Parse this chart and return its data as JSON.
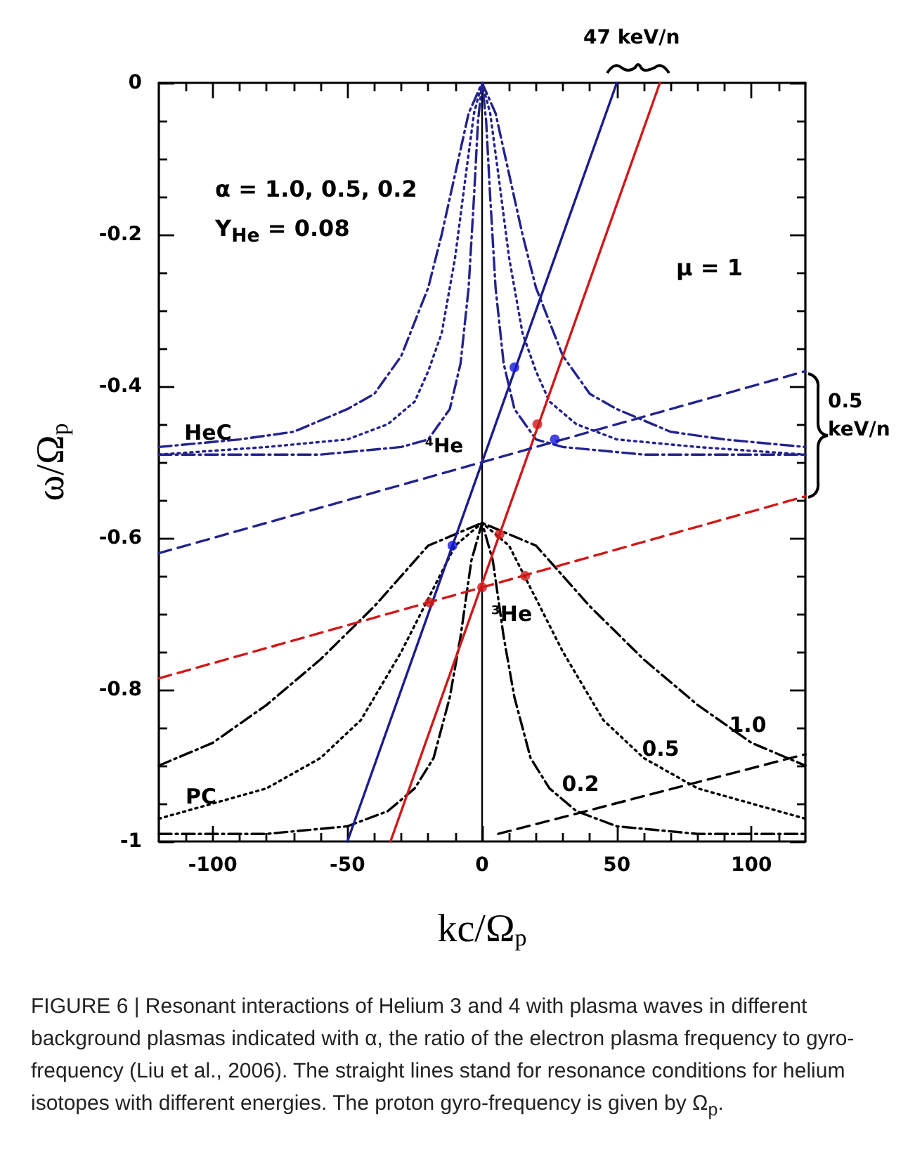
{
  "chart_data": {
    "type": "line",
    "xlabel": "kc/Ω$_{p}$",
    "ylabel": "ω/Ω$_{p}$",
    "xlim": [
      -120,
      120
    ],
    "ylim": [
      -1,
      0
    ],
    "xticks": [
      {
        "value": -110,
        "label": null
      },
      -100,
      {
        "value": -90,
        "label": null
      },
      {
        "value": -80,
        "label": null
      },
      {
        "value": -70,
        "label": null
      },
      {
        "value": -60,
        "label": null
      },
      -50,
      {
        "value": -40,
        "label": null
      },
      {
        "value": -30,
        "label": null
      },
      {
        "value": -20,
        "label": null
      },
      {
        "value": -10,
        "label": null
      },
      0,
      {
        "value": 10,
        "label": null
      },
      {
        "value": 20,
        "label": null
      },
      {
        "value": 30,
        "label": null
      },
      {
        "value": 40,
        "label": null
      },
      50,
      {
        "value": 60,
        "label": null
      },
      {
        "value": 70,
        "label": null
      },
      {
        "value": 80,
        "label": null
      },
      {
        "value": 90,
        "label": null
      },
      100,
      {
        "value": 110,
        "label": null
      }
    ],
    "yticks": [
      -1,
      {
        "value": -0.95,
        "label": null
      },
      {
        "value": -0.9,
        "label": null
      },
      {
        "value": -0.85,
        "label": null
      },
      -0.8,
      {
        "value": -0.75,
        "label": null
      },
      {
        "value": -0.7,
        "label": null
      },
      {
        "value": -0.65,
        "label": null
      },
      -0.6,
      {
        "value": -0.55,
        "label": null
      },
      {
        "value": -0.5,
        "label": null
      },
      {
        "value": -0.45,
        "label": null
      },
      -0.4,
      {
        "value": -0.35,
        "label": null
      },
      {
        "value": -0.3,
        "label": null
      },
      {
        "value": -0.25,
        "label": null
      },
      -0.2,
      {
        "value": -0.15,
        "label": null
      },
      {
        "value": -0.1,
        "label": null
      },
      {
        "value": -0.05,
        "label": null
      },
      0
    ],
    "grid": false,
    "ref_lines": [
      {
        "axis": "x",
        "value": 0,
        "color": "#000000",
        "line_style": "solid"
      }
    ],
    "series": [
      {
        "type": "line",
        "color": "#23238e",
        "line_style": "dashdot",
        "x": [
          -120,
          -90,
          -70,
          -50,
          -40,
          -30,
          -20,
          -15,
          -10,
          -5,
          0,
          5,
          10,
          15,
          20,
          30,
          40,
          50,
          70,
          90,
          120
        ],
        "values": [
          -0.48,
          -0.47,
          -0.46,
          -0.43,
          -0.41,
          -0.36,
          -0.27,
          -0.2,
          -0.12,
          -0.04,
          0,
          -0.04,
          -0.12,
          -0.2,
          -0.27,
          -0.36,
          -0.41,
          -0.43,
          -0.46,
          -0.47,
          -0.48
        ]
      },
      {
        "type": "line",
        "color": "#23238e",
        "line_style": "dotted",
        "x": [
          -120,
          -80,
          -50,
          -35,
          -25,
          -20,
          -15,
          -10,
          -6,
          -3,
          0,
          3,
          6,
          10,
          15,
          20,
          25,
          35,
          50,
          80,
          120
        ],
        "values": [
          -0.49,
          -0.48,
          -0.47,
          -0.45,
          -0.42,
          -0.38,
          -0.33,
          -0.23,
          -0.12,
          -0.04,
          0,
          -0.04,
          -0.12,
          -0.23,
          -0.33,
          -0.38,
          -0.42,
          -0.45,
          -0.47,
          -0.48,
          -0.49
        ]
      },
      {
        "type": "line",
        "color": "#23238e",
        "line_style": "dashdot",
        "x": [
          -120,
          -60,
          -30,
          -20,
          -12,
          -8,
          -5,
          -3,
          -1.5,
          0,
          1.5,
          3,
          5,
          8,
          12,
          20,
          30,
          60,
          120
        ],
        "values": [
          -0.49,
          -0.49,
          -0.48,
          -0.47,
          -0.43,
          -0.37,
          -0.27,
          -0.15,
          -0.05,
          0,
          -0.05,
          -0.15,
          -0.27,
          -0.37,
          -0.43,
          -0.47,
          -0.48,
          -0.49,
          -0.49
        ]
      },
      {
        "type": "line",
        "color": "#000000",
        "line_style": "dashdot",
        "x": [
          -120,
          -100,
          -80,
          -60,
          -40,
          -20,
          0,
          20,
          40,
          60,
          80,
          100,
          120
        ],
        "values": [
          -0.9,
          -0.87,
          -0.82,
          -0.76,
          -0.69,
          -0.61,
          -0.58,
          -0.61,
          -0.69,
          -0.76,
          -0.82,
          -0.87,
          -0.9
        ]
      },
      {
        "type": "line",
        "color": "#000000",
        "line_style": "dotted",
        "x": [
          -120,
          -100,
          -80,
          -60,
          -45,
          -30,
          -20,
          -10,
          0,
          10,
          20,
          30,
          45,
          60,
          80,
          100,
          120
        ],
        "values": [
          -0.97,
          -0.95,
          -0.93,
          -0.89,
          -0.84,
          -0.75,
          -0.68,
          -0.61,
          -0.58,
          -0.61,
          -0.68,
          -0.75,
          -0.84,
          -0.89,
          -0.93,
          -0.95,
          -0.97
        ]
      },
      {
        "type": "line",
        "color": "#000000",
        "line_style": "dashdot",
        "x": [
          -120,
          -80,
          -50,
          -35,
          -25,
          -18,
          -12,
          -8,
          -4,
          0,
          4,
          8,
          12,
          18,
          25,
          35,
          50,
          80,
          120
        ],
        "values": [
          -0.99,
          -0.99,
          -0.98,
          -0.96,
          -0.93,
          -0.89,
          -0.81,
          -0.73,
          -0.63,
          -0.58,
          -0.63,
          -0.73,
          -0.81,
          -0.89,
          -0.93,
          -0.96,
          -0.98,
          -0.99,
          -0.99
        ]
      },
      {
        "type": "line",
        "color": "#1c1c8c",
        "line_style": "solid",
        "x": [
          -50,
          50
        ],
        "values": [
          -1,
          0
        ]
      },
      {
        "type": "line",
        "color": "#d01818",
        "line_style": "solid",
        "x": [
          -34,
          66
        ],
        "values": [
          -1,
          0
        ]
      },
      {
        "type": "line",
        "color": "#23238e",
        "line_style": "dashed",
        "x": [
          -120,
          120
        ],
        "values": [
          -0.62,
          -0.38
        ]
      },
      {
        "type": "line",
        "color": "#d01818",
        "line_style": "dashed",
        "x": [
          -120,
          120
        ],
        "values": [
          -0.785,
          -0.545
        ]
      },
      {
        "color": "#000000",
        "line_style": "dashed",
        "x": [
          6,
          120
        ],
        "values": [
          -0.99,
          -0.885
        ]
      },
      {
        "type": "scatter",
        "color": "#1515d8",
        "marker": "circle",
        "x": [
          12,
          -11,
          27
        ],
        "values": [
          -0.375,
          -0.61,
          -0.47
        ]
      },
      {
        "type": "scatter",
        "color": "#d01818",
        "marker": "circle",
        "x": [
          20.5,
          6.5,
          16,
          -19.5,
          0
        ],
        "values": [
          -0.45,
          -0.595,
          -0.65,
          -0.685,
          -0.665
        ]
      }
    ],
    "annotations": [
      "α = 1.0, 0.5, 0.2",
      "Y$_{He}$ = 0.08",
      "μ = 1",
      "47 keV/n",
      "0.5 keV/n",
      "HeC",
      "⁴He",
      "³He",
      "PC",
      "1.0",
      "0.5",
      "0.2",
      "FIGURE 6 | Resonant interactions of Helium 3 and 4 with plasma waves in different background plasmas indicated with α, the ratio of the electron plasma frequency to gyro-frequency (Liu et al., 2006). The straight lines stand for resonance conditions for helium isotopes with different energies. The proton gyro-frequency is given by Ω$_{p}$."
    ]
  }
}
